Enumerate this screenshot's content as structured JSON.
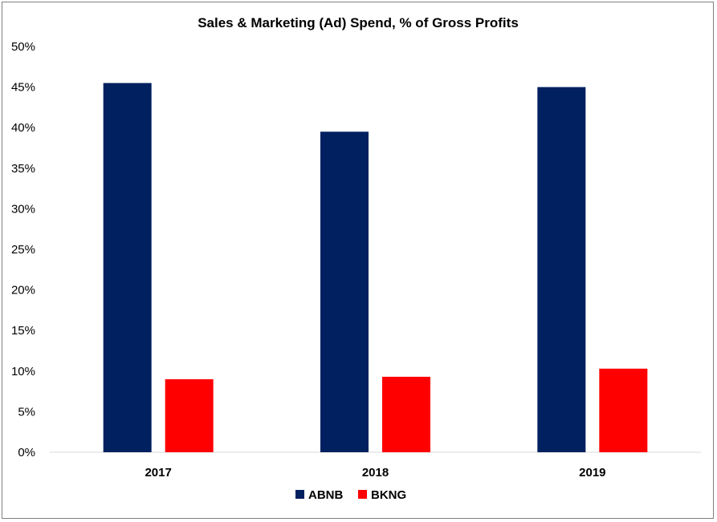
{
  "chart_data": {
    "type": "bar",
    "title": "Sales & Marketing (Ad) Spend, % of Gross Profits",
    "xlabel": "",
    "ylabel": "",
    "categories": [
      "2017",
      "2018",
      "2019"
    ],
    "series": [
      {
        "name": "ABNB",
        "color": "#002060",
        "values": [
          45.5,
          39.5,
          45.0
        ]
      },
      {
        "name": "BKNG",
        "color": "#ff0000",
        "values": [
          9.0,
          9.3,
          10.3
        ]
      }
    ],
    "ylim": [
      0,
      50
    ],
    "yticks": [
      "0%",
      "5%",
      "10%",
      "15%",
      "20%",
      "25%",
      "30%",
      "35%",
      "40%",
      "45%",
      "50%"
    ],
    "grid": false,
    "legend_position": "bottom"
  }
}
